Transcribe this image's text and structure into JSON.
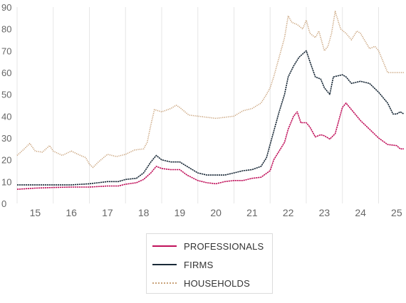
{
  "chart_data": {
    "type": "line",
    "title": "",
    "xlabel": "",
    "ylabel": "",
    "xlim": [
      14.5,
      25.2
    ],
    "ylim": [
      0,
      90
    ],
    "x_ticks": [
      15,
      16,
      17,
      18,
      19,
      20,
      21,
      22,
      23,
      24,
      25
    ],
    "x_tick_labels": [
      "15",
      "16",
      "17",
      "18",
      "19",
      "20",
      "21",
      "22",
      "23",
      "24",
      "25"
    ],
    "y_ticks": [
      0,
      10,
      20,
      30,
      40,
      50,
      60,
      70,
      80,
      90
    ],
    "y_tick_labels": [
      "0",
      "10",
      "20",
      "30",
      "40",
      "50",
      "60",
      "70",
      "80",
      "90"
    ],
    "grid": "vertical",
    "legend_position": "bottom",
    "series": [
      {
        "name": "PROFESSIONALS",
        "color": "#c0105a",
        "style": "solid",
        "points": [
          [
            14.5,
            6.5
          ],
          [
            15.0,
            7.0
          ],
          [
            15.5,
            7.3
          ],
          [
            16.0,
            7.5
          ],
          [
            16.5,
            7.5
          ],
          [
            17.0,
            8.0
          ],
          [
            17.3,
            8.0
          ],
          [
            17.5,
            8.8
          ],
          [
            17.8,
            9.5
          ],
          [
            18.0,
            11.0
          ],
          [
            18.2,
            14.0
          ],
          [
            18.35,
            17.0
          ],
          [
            18.5,
            16.0
          ],
          [
            18.75,
            15.5
          ],
          [
            19.0,
            15.5
          ],
          [
            19.2,
            13.0
          ],
          [
            19.5,
            10.5
          ],
          [
            19.75,
            9.5
          ],
          [
            20.0,
            9.0
          ],
          [
            20.25,
            10.0
          ],
          [
            20.5,
            10.5
          ],
          [
            20.75,
            10.5
          ],
          [
            21.0,
            11.5
          ],
          [
            21.25,
            12.0
          ],
          [
            21.5,
            15.0
          ],
          [
            21.6,
            20.0
          ],
          [
            21.75,
            24.0
          ],
          [
            21.9,
            28.0
          ],
          [
            22.0,
            34.0
          ],
          [
            22.15,
            40.0
          ],
          [
            22.25,
            42.0
          ],
          [
            22.35,
            37.0
          ],
          [
            22.5,
            37.0
          ],
          [
            22.6,
            35.0
          ],
          [
            22.75,
            30.5
          ],
          [
            22.9,
            31.5
          ],
          [
            23.0,
            31.0
          ],
          [
            23.15,
            29.5
          ],
          [
            23.3,
            32.0
          ],
          [
            23.5,
            44.0
          ],
          [
            23.6,
            46.0
          ],
          [
            23.75,
            43.0
          ],
          [
            24.0,
            38.0
          ],
          [
            24.25,
            34.0
          ],
          [
            24.5,
            30.0
          ],
          [
            24.75,
            27.0
          ],
          [
            25.0,
            26.5
          ],
          [
            25.1,
            25.0
          ],
          [
            25.2,
            25.0
          ]
        ]
      },
      {
        "name": "FIRMS",
        "color": "#1a2a38",
        "style": "solid",
        "points": [
          [
            14.5,
            8.5
          ],
          [
            15.0,
            8.5
          ],
          [
            15.5,
            8.5
          ],
          [
            16.0,
            8.5
          ],
          [
            16.5,
            9.0
          ],
          [
            17.0,
            10.0
          ],
          [
            17.3,
            10.0
          ],
          [
            17.5,
            11.0
          ],
          [
            17.8,
            11.5
          ],
          [
            18.0,
            14.0
          ],
          [
            18.2,
            19.0
          ],
          [
            18.35,
            22.0
          ],
          [
            18.5,
            20.0
          ],
          [
            18.75,
            19.0
          ],
          [
            19.0,
            19.0
          ],
          [
            19.2,
            17.0
          ],
          [
            19.5,
            14.0
          ],
          [
            19.75,
            13.0
          ],
          [
            20.0,
            13.0
          ],
          [
            20.25,
            13.0
          ],
          [
            20.5,
            14.0
          ],
          [
            20.75,
            15.0
          ],
          [
            21.0,
            15.5
          ],
          [
            21.25,
            17.0
          ],
          [
            21.4,
            21.0
          ],
          [
            21.5,
            27.0
          ],
          [
            21.6,
            33.0
          ],
          [
            21.75,
            42.0
          ],
          [
            21.9,
            50.0
          ],
          [
            22.0,
            58.0
          ],
          [
            22.15,
            63.0
          ],
          [
            22.3,
            67.0
          ],
          [
            22.5,
            70.0
          ],
          [
            22.6,
            65.0
          ],
          [
            22.75,
            58.0
          ],
          [
            22.9,
            57.0
          ],
          [
            23.0,
            53.0
          ],
          [
            23.15,
            50.0
          ],
          [
            23.25,
            58.0
          ],
          [
            23.5,
            59.0
          ],
          [
            23.6,
            58.0
          ],
          [
            23.75,
            55.0
          ],
          [
            24.0,
            56.0
          ],
          [
            24.25,
            55.0
          ],
          [
            24.5,
            51.0
          ],
          [
            24.75,
            46.0
          ],
          [
            24.9,
            41.0
          ],
          [
            25.0,
            41.0
          ],
          [
            25.1,
            42.0
          ],
          [
            25.2,
            41.0
          ]
        ]
      },
      {
        "name": "HOUSEHOLDS",
        "color": "#c9a27a",
        "style": "dotted",
        "points": [
          [
            14.5,
            22.0
          ],
          [
            14.7,
            25.0
          ],
          [
            14.85,
            27.5
          ],
          [
            15.0,
            24.0
          ],
          [
            15.2,
            23.5
          ],
          [
            15.4,
            26.5
          ],
          [
            15.5,
            24.0
          ],
          [
            15.75,
            22.0
          ],
          [
            16.0,
            24.0
          ],
          [
            16.25,
            22.0
          ],
          [
            16.4,
            21.0
          ],
          [
            16.5,
            18.0
          ],
          [
            16.6,
            16.5
          ],
          [
            16.75,
            19.0
          ],
          [
            17.0,
            22.5
          ],
          [
            17.25,
            21.5
          ],
          [
            17.5,
            22.5
          ],
          [
            17.75,
            24.5
          ],
          [
            18.0,
            25.0
          ],
          [
            18.1,
            28.0
          ],
          [
            18.2,
            36.0
          ],
          [
            18.3,
            43.0
          ],
          [
            18.5,
            42.0
          ],
          [
            18.75,
            43.5
          ],
          [
            18.9,
            45.0
          ],
          [
            19.0,
            44.0
          ],
          [
            19.25,
            40.5
          ],
          [
            19.5,
            40.0
          ],
          [
            19.75,
            39.5
          ],
          [
            20.0,
            39.0
          ],
          [
            20.25,
            39.5
          ],
          [
            20.5,
            40.0
          ],
          [
            20.75,
            42.5
          ],
          [
            21.0,
            43.5
          ],
          [
            21.25,
            46.0
          ],
          [
            21.4,
            50.0
          ],
          [
            21.5,
            53.0
          ],
          [
            21.6,
            58.0
          ],
          [
            21.75,
            67.0
          ],
          [
            21.9,
            76.0
          ],
          [
            22.0,
            86.0
          ],
          [
            22.1,
            83.0
          ],
          [
            22.25,
            82.0
          ],
          [
            22.4,
            80.0
          ],
          [
            22.5,
            84.0
          ],
          [
            22.6,
            78.0
          ],
          [
            22.75,
            76.0
          ],
          [
            22.85,
            79.0
          ],
          [
            23.0,
            70.0
          ],
          [
            23.1,
            72.0
          ],
          [
            23.2,
            78.0
          ],
          [
            23.3,
            88.0
          ],
          [
            23.45,
            80.0
          ],
          [
            23.6,
            78.0
          ],
          [
            23.75,
            75.0
          ],
          [
            23.9,
            79.0
          ],
          [
            24.0,
            78.0
          ],
          [
            24.25,
            71.0
          ],
          [
            24.4,
            72.0
          ],
          [
            24.5,
            70.0
          ],
          [
            24.6,
            66.0
          ],
          [
            24.75,
            60.0
          ],
          [
            25.0,
            60.0
          ],
          [
            25.2,
            60.0
          ]
        ]
      }
    ]
  }
}
